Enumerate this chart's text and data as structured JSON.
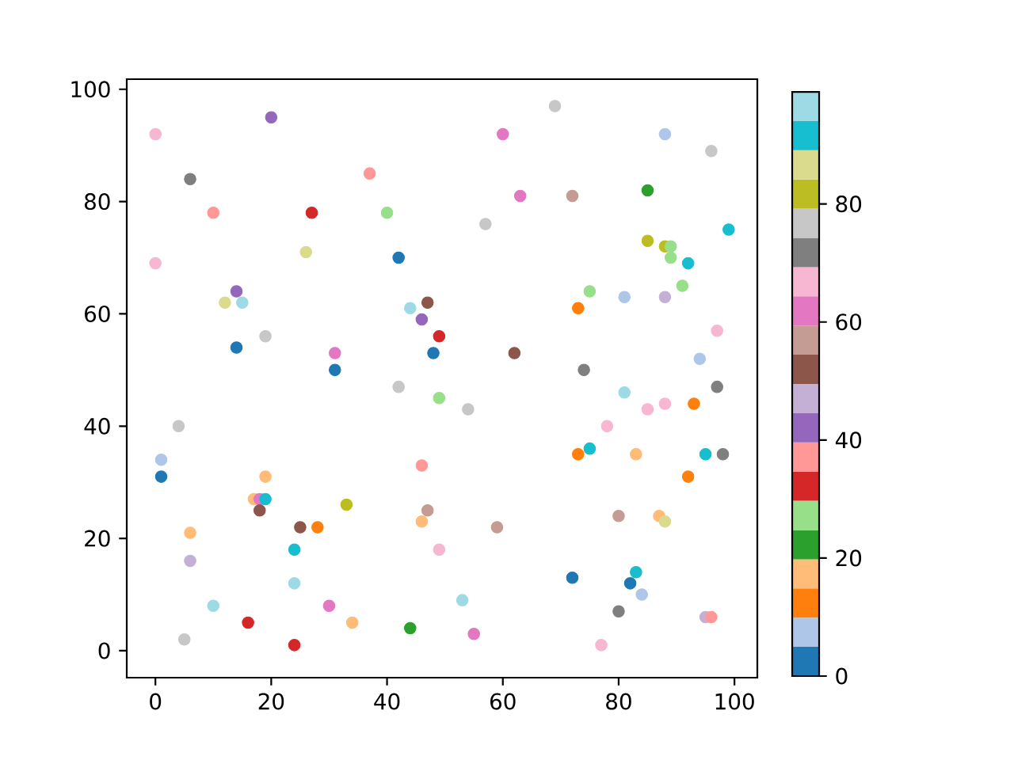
{
  "chart_data": {
    "type": "scatter",
    "marker": "circle",
    "x": [
      0,
      20,
      6,
      37,
      10,
      27,
      40,
      26,
      42,
      0,
      14,
      12,
      15,
      44,
      47,
      46,
      49,
      19,
      14,
      31,
      48,
      31,
      69,
      60,
      88,
      96,
      63,
      72,
      85,
      57,
      99,
      85,
      88,
      89,
      89,
      92,
      75,
      81,
      88,
      91,
      73,
      97,
      62,
      94,
      74,
      42,
      49,
      4,
      1,
      1,
      46,
      19,
      17,
      18,
      19,
      18,
      33,
      47,
      46,
      6,
      25,
      28,
      24,
      49,
      6,
      24,
      10,
      30,
      16,
      34,
      44,
      5,
      24,
      54,
      81,
      97,
      85,
      88,
      93,
      78,
      75,
      73,
      83,
      95,
      98,
      92,
      59,
      80,
      87,
      88,
      72,
      83,
      82,
      84,
      53,
      80,
      95,
      96,
      55,
      77
    ],
    "values": [
      92,
      95,
      84,
      85,
      78,
      78,
      78,
      71,
      70,
      69,
      64,
      62,
      62,
      61,
      62,
      59,
      56,
      56,
      54,
      53,
      53,
      50,
      97,
      92,
      92,
      89,
      81,
      81,
      82,
      76,
      75,
      73,
      72,
      72,
      70,
      69,
      64,
      63,
      63,
      65,
      61,
      57,
      53,
      52,
      50,
      47,
      45,
      40,
      34,
      31,
      33,
      31,
      27,
      27,
      27,
      25,
      26,
      25,
      23,
      21,
      22,
      22,
      18,
      18,
      16,
      12,
      8,
      8,
      5,
      5,
      4,
      2,
      1,
      43,
      46,
      47,
      43,
      44,
      44,
      40,
      36,
      35,
      35,
      35,
      35,
      31,
      22,
      24,
      24,
      23,
      13,
      14,
      12,
      10,
      9,
      7,
      6,
      6,
      3,
      1
    ],
    "cvalues": [
      67,
      42,
      72,
      37,
      37,
      32,
      27,
      87,
      2,
      67,
      42,
      87,
      97,
      97,
      52,
      42,
      32,
      77,
      2,
      62,
      2,
      2,
      77,
      62,
      7,
      77,
      62,
      57,
      22,
      77,
      92,
      82,
      82,
      27,
      27,
      92,
      27,
      7,
      47,
      27,
      12,
      67,
      52,
      7,
      72,
      77,
      27,
      77,
      7,
      2,
      37,
      17,
      17,
      62,
      92,
      52,
      82,
      57,
      17,
      17,
      52,
      12,
      92,
      67,
      47,
      97,
      97,
      62,
      32,
      17,
      22,
      77,
      32,
      77,
      97,
      72,
      67,
      67,
      12,
      67,
      92,
      12,
      17,
      92,
      72,
      12,
      57,
      57,
      17,
      87,
      2,
      92,
      2,
      7,
      97,
      72,
      47,
      37,
      62,
      67
    ],
    "clim": [
      0,
      99
    ],
    "cticks": [
      0,
      20,
      40,
      60,
      80
    ],
    "xlim": [
      -4.95,
      103.95
    ],
    "ylim": [
      -4.8,
      101.8
    ],
    "xticks": [
      0,
      20,
      40,
      60,
      80,
      100
    ],
    "yticks": [
      0,
      20,
      40,
      60,
      80,
      100
    ]
  }
}
